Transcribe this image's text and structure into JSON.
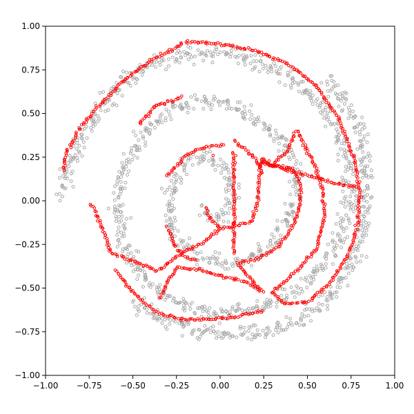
{
  "chart_data": {
    "type": "scatter",
    "title": "",
    "xlabel": "",
    "ylabel": "",
    "xlim": [
      -1.0,
      1.0
    ],
    "ylim": [
      -1.0,
      1.0
    ],
    "grid": false,
    "x_ticks": [
      -1.0,
      -0.75,
      -0.5,
      -0.25,
      0.0,
      0.25,
      0.5,
      0.75,
      1.0
    ],
    "y_ticks": [
      -1.0,
      -0.75,
      -0.5,
      -0.25,
      0.0,
      0.25,
      0.5,
      0.75,
      1.0
    ],
    "x_tick_labels": [
      "−1.00",
      "−0.75",
      "−0.50",
      "−0.25",
      "0.00",
      "0.25",
      "0.50",
      "0.75",
      "1.00"
    ],
    "y_tick_labels": [
      "−1.00",
      "−0.75",
      "−0.50",
      "−0.25",
      "0.00",
      "0.25",
      "0.50",
      "0.75",
      "1.00"
    ],
    "series": [
      {
        "color": "#a9a9a9",
        "marker": "hollow-circle",
        "description_points": [
          [
            -0.1,
            -0.05
          ],
          [
            -0.06,
            -0.08
          ],
          [
            0.0,
            -0.1
          ],
          [
            0.05,
            -0.06
          ],
          [
            0.08,
            0.02
          ],
          [
            0.06,
            0.12
          ],
          [
            0.0,
            0.2
          ],
          [
            -0.08,
            0.25
          ],
          [
            -0.18,
            0.22
          ],
          [
            -0.26,
            0.12
          ],
          [
            -0.3,
            0.0
          ],
          [
            -0.28,
            -0.14
          ],
          [
            -0.2,
            -0.26
          ],
          [
            -0.08,
            -0.34
          ],
          [
            0.06,
            -0.36
          ],
          [
            0.2,
            -0.32
          ],
          [
            0.32,
            -0.22
          ],
          [
            0.4,
            -0.08
          ],
          [
            0.44,
            0.06
          ],
          [
            0.42,
            0.22
          ],
          [
            0.34,
            0.36
          ],
          [
            0.22,
            0.46
          ],
          [
            0.06,
            0.54
          ],
          [
            -0.1,
            0.57
          ],
          [
            -0.26,
            0.52
          ],
          [
            -0.4,
            0.42
          ],
          [
            -0.5,
            0.28
          ],
          [
            -0.57,
            0.12
          ],
          [
            -0.59,
            -0.06
          ],
          [
            -0.56,
            -0.24
          ],
          [
            -0.48,
            -0.4
          ],
          [
            -0.36,
            -0.52
          ],
          [
            -0.2,
            -0.6
          ],
          [
            -0.02,
            -0.64
          ],
          [
            0.16,
            -0.63
          ],
          [
            0.34,
            -0.56
          ],
          [
            0.5,
            -0.46
          ],
          [
            0.62,
            -0.32
          ],
          [
            0.7,
            -0.16
          ],
          [
            0.74,
            0.02
          ],
          [
            0.73,
            0.2
          ],
          [
            0.68,
            0.38
          ],
          [
            0.58,
            0.54
          ],
          [
            0.44,
            0.68
          ],
          [
            0.26,
            0.78
          ],
          [
            0.06,
            0.84
          ],
          [
            -0.14,
            0.85
          ],
          [
            -0.34,
            0.8
          ],
          [
            -0.52,
            0.7
          ],
          [
            -0.66,
            0.56
          ],
          [
            -0.78,
            0.38
          ],
          [
            -0.86,
            0.2
          ],
          [
            -0.92,
            0.04
          ],
          [
            0.6,
            0.7
          ],
          [
            0.7,
            0.58
          ],
          [
            0.78,
            0.45
          ],
          [
            0.82,
            0.3
          ],
          [
            0.84,
            0.1
          ],
          [
            0.83,
            -0.1
          ],
          [
            0.78,
            -0.3
          ],
          [
            0.7,
            -0.46
          ],
          [
            0.58,
            -0.6
          ],
          [
            0.42,
            -0.7
          ],
          [
            0.24,
            -0.75
          ],
          [
            0.04,
            -0.76
          ],
          [
            -0.16,
            -0.74
          ],
          [
            -0.34,
            -0.68
          ],
          [
            -0.5,
            -0.58
          ]
        ]
      },
      {
        "color": "#ff0000",
        "marker": "hollow-circle",
        "description_points": [
          [
            -0.9,
            0.17
          ],
          [
            -0.88,
            0.28
          ],
          [
            -0.8,
            0.42
          ],
          [
            -0.68,
            0.56
          ],
          [
            -0.54,
            0.7
          ],
          [
            -0.4,
            0.8
          ],
          [
            -0.27,
            0.87
          ],
          [
            -0.21,
            0.91
          ],
          [
            0.0,
            0.9
          ],
          [
            0.2,
            0.86
          ],
          [
            0.38,
            0.79
          ],
          [
            0.55,
            0.66
          ],
          [
            0.68,
            0.47
          ],
          [
            0.77,
            0.24
          ],
          [
            0.8,
            0.06
          ],
          [
            0.79,
            -0.14
          ],
          [
            0.73,
            -0.32
          ],
          [
            0.63,
            -0.47
          ],
          [
            0.5,
            -0.58
          ],
          [
            0.36,
            -0.59
          ],
          [
            0.3,
            -0.52
          ],
          [
            0.42,
            -0.42
          ],
          [
            0.55,
            -0.28
          ],
          [
            0.6,
            -0.08
          ],
          [
            0.58,
            0.1
          ],
          [
            0.52,
            0.25
          ],
          [
            0.44,
            0.4
          ],
          [
            0.38,
            0.28
          ],
          [
            0.3,
            0.2
          ],
          [
            0.24,
            0.24
          ],
          [
            0.22,
            0.12
          ],
          [
            0.22,
            0.0
          ],
          [
            0.18,
            -0.12
          ],
          [
            0.1,
            -0.14
          ],
          [
            0.0,
            -0.16
          ],
          [
            -0.06,
            -0.1
          ],
          [
            -0.08,
            -0.04
          ],
          [
            0.08,
            0.34
          ],
          [
            0.14,
            0.3
          ],
          [
            0.2,
            0.24
          ],
          [
            0.24,
            0.16
          ],
          [
            -0.3,
            -0.16
          ],
          [
            -0.26,
            -0.26
          ],
          [
            -0.2,
            -0.32
          ],
          [
            -0.14,
            -0.34
          ],
          [
            -0.3,
            0.14
          ],
          [
            -0.2,
            0.26
          ],
          [
            -0.08,
            0.31
          ],
          [
            0.02,
            0.32
          ],
          [
            -0.46,
            0.44
          ],
          [
            -0.38,
            0.54
          ],
          [
            -0.26,
            0.58
          ],
          [
            -0.22,
            0.6
          ],
          [
            -0.6,
            -0.4
          ],
          [
            -0.52,
            -0.5
          ],
          [
            -0.44,
            -0.58
          ],
          [
            -0.36,
            -0.64
          ],
          [
            -0.3,
            -0.66
          ],
          [
            -0.2,
            -0.68
          ],
          [
            -0.06,
            -0.68
          ],
          [
            0.06,
            -0.67
          ],
          [
            0.14,
            -0.65
          ],
          [
            0.24,
            -0.63
          ],
          [
            -0.34,
            -0.56
          ],
          [
            -0.3,
            -0.46
          ],
          [
            -0.24,
            -0.38
          ],
          [
            -0.1,
            -0.4
          ],
          [
            0.04,
            -0.44
          ],
          [
            0.14,
            -0.46
          ],
          [
            0.24,
            -0.52
          ],
          [
            0.1,
            -0.36
          ],
          [
            0.22,
            -0.33
          ],
          [
            0.34,
            -0.26
          ],
          [
            0.42,
            -0.14
          ],
          [
            0.46,
            -0.02
          ],
          [
            0.46,
            0.1
          ],
          [
            0.42,
            0.18
          ],
          [
            0.24,
            0.22
          ],
          [
            0.32,
            0.2
          ],
          [
            0.4,
            0.17
          ],
          [
            0.52,
            0.14
          ],
          [
            0.66,
            0.1
          ],
          [
            0.78,
            0.08
          ],
          [
            -0.74,
            -0.02
          ],
          [
            -0.7,
            -0.1
          ],
          [
            -0.66,
            -0.2
          ],
          [
            -0.62,
            -0.3
          ],
          [
            -0.36,
            -0.4
          ],
          [
            -0.22,
            -0.3
          ],
          [
            -0.1,
            -0.24
          ],
          [
            0.0,
            -0.16
          ],
          [
            0.08,
            0.28
          ],
          [
            0.08,
            0.14
          ],
          [
            0.08,
            0.0
          ],
          [
            0.08,
            -0.14
          ],
          [
            0.08,
            -0.3
          ],
          [
            -0.04,
            0.26
          ]
        ]
      }
    ]
  }
}
